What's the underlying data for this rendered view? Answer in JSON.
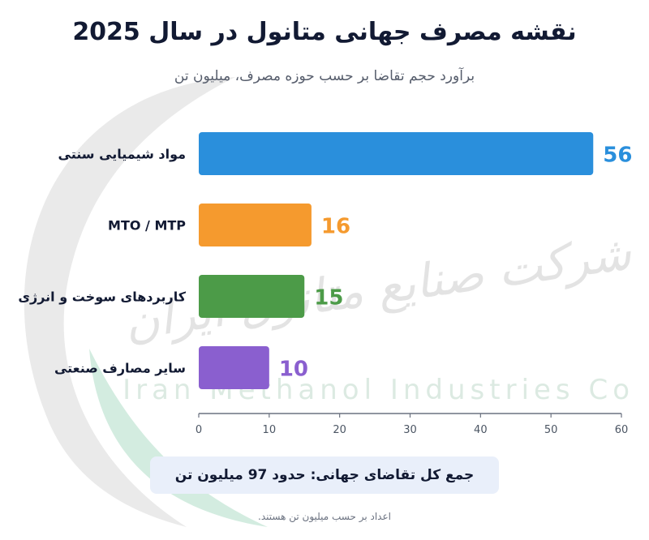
{
  "title": "نقشه مصرف جهانی متانول در سال 2025",
  "subtitle": "برآورد حجم تقاضا بر حسب حوزه مصرف، میلیون تن",
  "watermark": {
    "persian": "شرکت صنایع متانول ایران",
    "english": "Iran Methanol Industries Co"
  },
  "total_note": "جمع کل تقاضای جهانی: حدود 97 میلیون تن",
  "footnote": "اعداد بر حسب میلیون تن هستند.",
  "chart_data": {
    "type": "bar",
    "orientation": "horizontal",
    "categories": [
      "مواد شیمیایی سنتی",
      "MTO / MTP",
      "کاربردهای سوخت و انرژی",
      "سایر مصارف صنعتی"
    ],
    "values": [
      56,
      16,
      15,
      10
    ],
    "colors": [
      "#2a8fdc",
      "#f59a2e",
      "#4c9b48",
      "#8a5fcf"
    ],
    "xlim": [
      0,
      60
    ],
    "xticks": [
      "0",
      "10",
      "20",
      "30",
      "40",
      "50",
      "60"
    ],
    "grid": false
  }
}
